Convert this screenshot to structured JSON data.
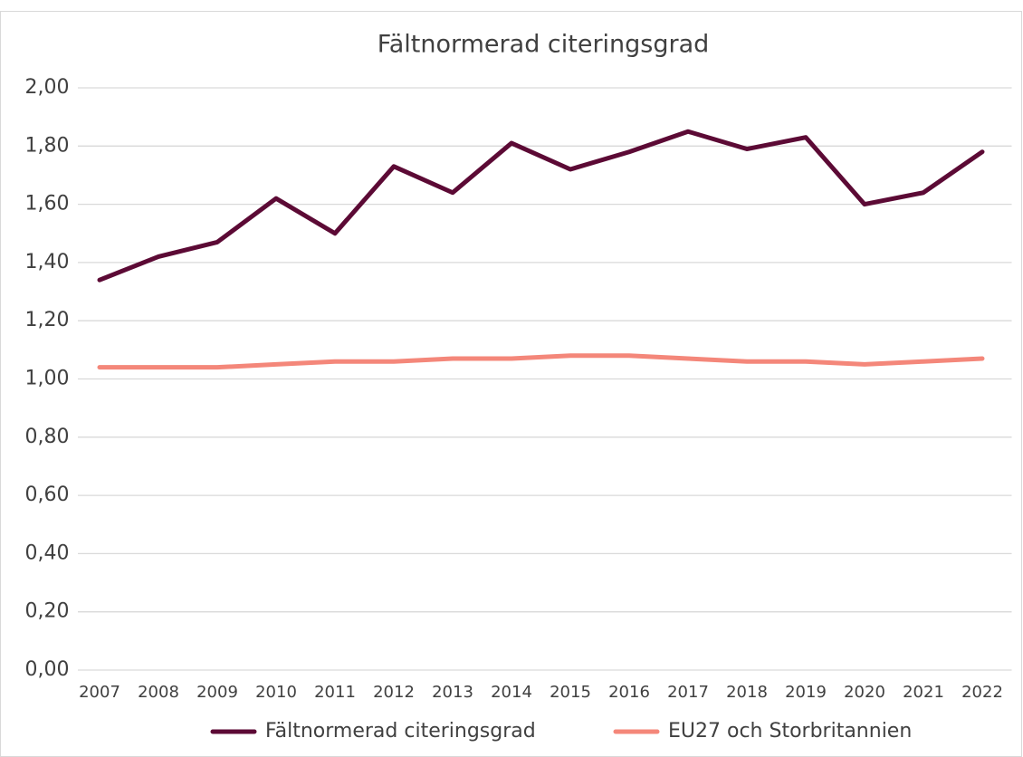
{
  "chart_data": {
    "type": "line",
    "title": "Fältnormerad citeringsgrad",
    "categories": [
      "2007",
      "2008",
      "2009",
      "2010",
      "2011",
      "2012",
      "2013",
      "2014",
      "2015",
      "2016",
      "2017",
      "2018",
      "2019",
      "2020",
      "2021",
      "2022"
    ],
    "series": [
      {
        "name": "Fältnormerad citeringsgrad",
        "color": "#5c0a35",
        "values": [
          1.34,
          1.42,
          1.47,
          1.62,
          1.5,
          1.73,
          1.64,
          1.81,
          1.72,
          1.78,
          1.85,
          1.79,
          1.83,
          1.6,
          1.64,
          1.78
        ]
      },
      {
        "name": "EU27 och Storbritannien",
        "color": "#f4877a",
        "values": [
          1.04,
          1.04,
          1.04,
          1.05,
          1.06,
          1.06,
          1.07,
          1.07,
          1.08,
          1.08,
          1.07,
          1.06,
          1.06,
          1.05,
          1.06,
          1.07
        ]
      }
    ],
    "ylim": [
      0,
      2
    ],
    "yticks": [
      {
        "value": 0,
        "label": "0,00"
      },
      {
        "value": 0.2,
        "label": "0,20"
      },
      {
        "value": 0.4,
        "label": "0,40"
      },
      {
        "value": 0.6,
        "label": "0,60"
      },
      {
        "value": 0.8,
        "label": "0,80"
      },
      {
        "value": 1,
        "label": "1,00"
      },
      {
        "value": 1.2,
        "label": "1,20"
      },
      {
        "value": 1.4,
        "label": "1,40"
      },
      {
        "value": 1.6,
        "label": "1,60"
      },
      {
        "value": 1.8,
        "label": "1,80"
      },
      {
        "value": 2,
        "label": "2,00"
      }
    ],
    "grid": true,
    "legend": "bottom"
  }
}
